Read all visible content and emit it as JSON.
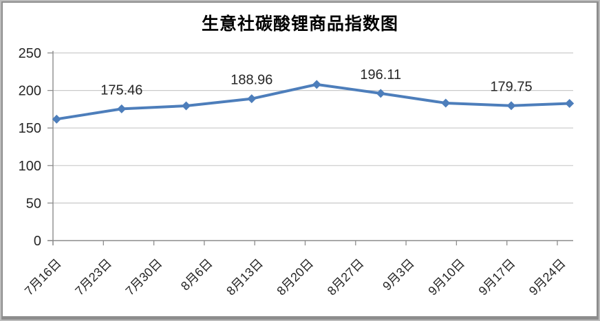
{
  "chart_data": {
    "type": "line",
    "title": "生意社碳酸锂商品指数图",
    "x_labels": [
      "7月16日",
      "7月23日",
      "7月30日",
      "8月6日",
      "8月13日",
      "8月20日",
      "8月27日",
      "9月3日",
      "9月10日",
      "9月17日",
      "9月24日"
    ],
    "ylim": [
      0,
      250
    ],
    "yticks": [
      0,
      50,
      100,
      150,
      200,
      250
    ],
    "grid": true,
    "legend": "none",
    "colors": {
      "line": "#4D7EBB",
      "gridline": "#c9c9c9",
      "axis": "#8c8c8c",
      "text": "#262626"
    },
    "series": [
      {
        "marker": "diamond",
        "color": "#4D7EBB",
        "points": [
          {
            "x_frac": 0.007,
            "value": 161.8
          },
          {
            "x_frac": 0.132,
            "value": 175.46,
            "label": "175.46"
          },
          {
            "x_frac": 0.256,
            "value": 179.5
          },
          {
            "x_frac": 0.382,
            "value": 188.96,
            "label": "188.96"
          },
          {
            "x_frac": 0.507,
            "value": 208.0
          },
          {
            "x_frac": 0.63,
            "value": 196.11,
            "label": "196.11"
          },
          {
            "x_frac": 0.755,
            "value": 183.2
          },
          {
            "x_frac": 0.881,
            "value": 179.75,
            "label": "179.75"
          },
          {
            "x_frac": 0.993,
            "value": 182.7
          }
        ]
      }
    ]
  }
}
